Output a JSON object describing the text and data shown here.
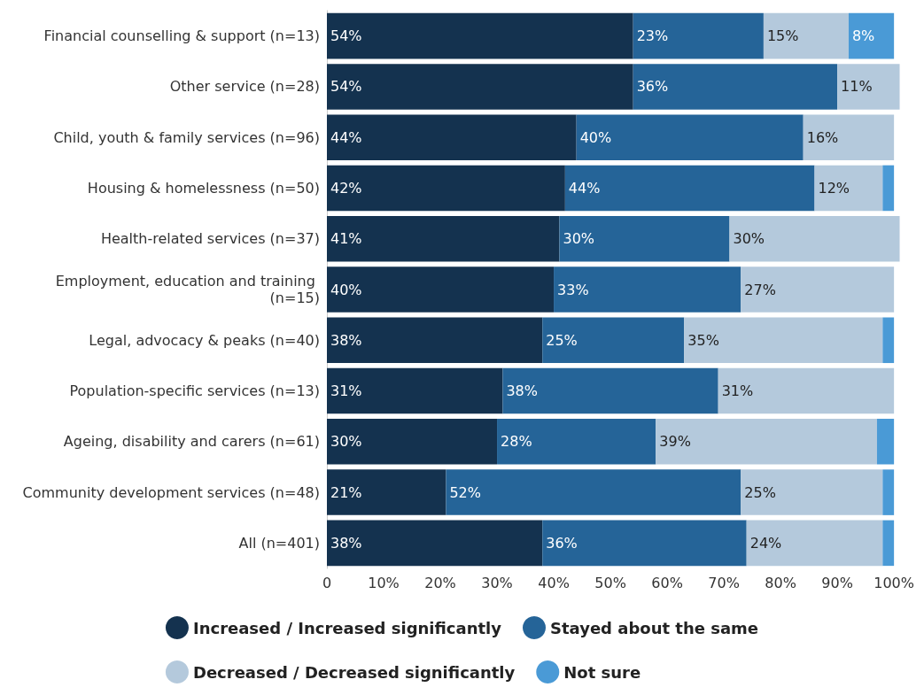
{
  "chart_data": {
    "type": "bar",
    "orientation": "horizontal",
    "stacked": true,
    "categories": [
      "Financial counselling & support (n=13)",
      "Other service (n=28)",
      "Child, youth & family services (n=96)",
      "Housing & homelessness (n=50)",
      "Health-related services (n=37)",
      "Employment, education and training (n=15)",
      "Legal, advocacy & peaks (n=40)",
      "Population-specific services (n=13)",
      "Ageing, disability and carers (n=61)",
      "Community development services (n=48)",
      "All (n=401)"
    ],
    "series": [
      {
        "name": "Increased / Increased significantly",
        "color": "#14324f",
        "values": [
          54,
          54,
          44,
          42,
          41,
          40,
          38,
          31,
          30,
          21,
          38
        ],
        "value_labels": [
          "54%",
          "54%",
          "44%",
          "42%",
          "41%",
          "40%",
          "38%",
          "31%",
          "30%",
          "21%",
          "38%"
        ]
      },
      {
        "name": "Stayed about the same",
        "color": "#256498",
        "values": [
          23,
          36,
          40,
          44,
          30,
          33,
          25,
          38,
          28,
          52,
          36
        ],
        "value_labels": [
          "23%",
          "36%",
          "40%",
          "44%",
          "30%",
          "33%",
          "25%",
          "38%",
          "28%",
          "52%",
          "36%"
        ]
      },
      {
        "name": "Decreased / Decreased significantly",
        "color": "#b4c9dc",
        "values": [
          15,
          11,
          16,
          12,
          30,
          27,
          35,
          31,
          39,
          25,
          24
        ],
        "value_labels": [
          "15%",
          "11%",
          "16%",
          "12%",
          "30%",
          "27%",
          "35%",
          "31%",
          "39%",
          "25%",
          "24%"
        ]
      },
      {
        "name": "Not sure",
        "color": "#4a9ad6",
        "values": [
          8,
          0,
          0,
          2,
          0,
          0,
          2,
          0,
          3,
          2,
          2
        ],
        "value_labels": [
          "8%",
          null,
          null,
          null,
          null,
          null,
          null,
          null,
          null,
          null,
          null
        ]
      }
    ],
    "xlim": [
      0,
      101
    ],
    "xticks": [
      {
        "value": 0,
        "label": "0"
      },
      {
        "value": 10,
        "label": "10%"
      },
      {
        "value": 20,
        "label": "20%"
      },
      {
        "value": 30,
        "label": "30%"
      },
      {
        "value": 40,
        "label": "40%"
      },
      {
        "value": 50,
        "label": "50%"
      },
      {
        "value": 60,
        "label": "60%"
      },
      {
        "value": 70,
        "label": "70%"
      },
      {
        "value": 80,
        "label": "80%"
      },
      {
        "value": 90,
        "label": "90%"
      },
      {
        "value": 100,
        "label": "100%"
      }
    ],
    "grid": false,
    "legend": "bottom"
  }
}
